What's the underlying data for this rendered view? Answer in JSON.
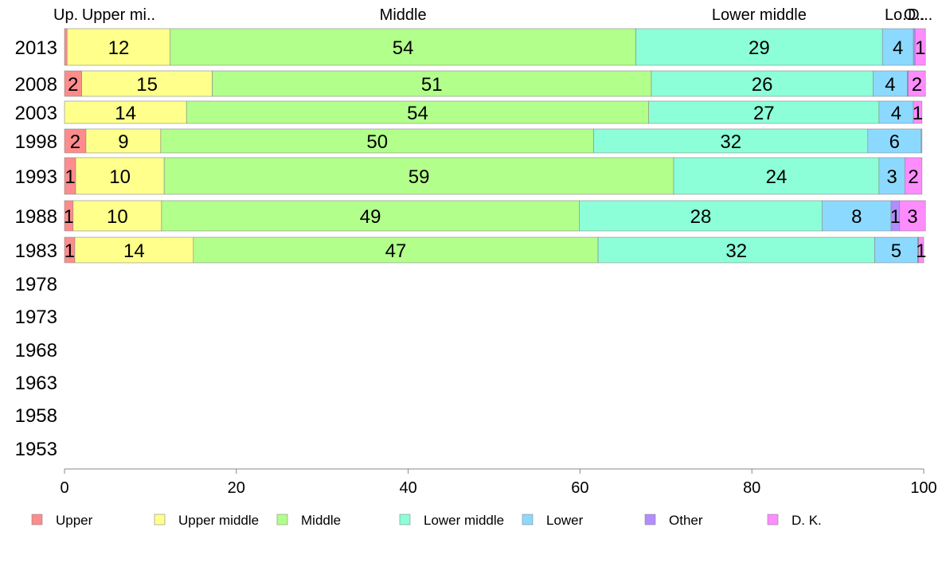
{
  "chart_data": {
    "type": "bar",
    "orientation": "horizontal",
    "stacked": true,
    "categories": [
      "2013",
      "2008",
      "2003",
      "1998",
      "1993",
      "1988",
      "1983",
      "1978",
      "1973",
      "1968",
      "1963",
      "1958",
      "1953"
    ],
    "xlim": [
      0,
      100
    ],
    "xticks": [
      0,
      20,
      40,
      60,
      80,
      100
    ],
    "top_labels": [
      "Up.",
      "Upper mi..",
      "Middle",
      "Lower middle",
      "Lo..",
      "O..",
      "D..."
    ],
    "legend_position": "bottom",
    "grid": false,
    "series": [
      {
        "name": "Upper",
        "color": "#ff8c8c",
        "values": [
          0.3,
          2,
          0,
          2.5,
          1.3,
          1,
          1.2,
          null,
          null,
          null,
          null,
          null,
          null
        ],
        "labels": [
          "",
          "2",
          "",
          "2",
          "1",
          "1",
          "1",
          "",
          "",
          "",
          "",
          "",
          ""
        ]
      },
      {
        "name": "Upper middle",
        "color": "#ffff8c",
        "values": [
          12,
          15.2,
          14.2,
          8.7,
          10.3,
          10.3,
          13.8,
          null,
          null,
          null,
          null,
          null,
          null
        ],
        "labels": [
          "12",
          "15",
          "14",
          "9",
          "10",
          "10",
          "14",
          "",
          "",
          "",
          "",
          "",
          ""
        ]
      },
      {
        "name": "Middle",
        "color": "#b3ff8c",
        "values": [
          54.2,
          51.1,
          53.8,
          50.4,
          59.3,
          48.6,
          47.1,
          null,
          null,
          null,
          null,
          null,
          null
        ],
        "labels": [
          "54",
          "51",
          "54",
          "50",
          "59",
          "49",
          "47",
          "",
          "",
          "",
          "",
          "",
          ""
        ]
      },
      {
        "name": "Lower middle",
        "color": "#8cffd9",
        "values": [
          28.7,
          25.8,
          26.8,
          31.9,
          23.9,
          28.3,
          32.2,
          null,
          null,
          null,
          null,
          null,
          null
        ],
        "labels": [
          "29",
          "26",
          "27",
          "32",
          "24",
          "28",
          "32",
          "",
          "",
          "",
          "",
          "",
          ""
        ]
      },
      {
        "name": "Lower",
        "color": "#8cd9ff",
        "values": [
          3.6,
          4,
          4,
          6.2,
          3,
          8,
          5,
          null,
          null,
          null,
          null,
          null,
          null
        ],
        "labels": [
          "4",
          "4",
          "4",
          "6",
          "3",
          "8",
          "5",
          "",
          "",
          "",
          "",
          "",
          ""
        ]
      },
      {
        "name": "Other",
        "color": "#b38cff",
        "values": [
          0.2,
          0.1,
          0,
          0,
          0,
          1,
          0.1,
          null,
          null,
          null,
          null,
          null,
          null
        ],
        "labels": [
          "",
          "",
          "",
          "",
          "",
          "1",
          "",
          "",
          "",
          "",
          "",
          "",
          ""
        ]
      },
      {
        "name": "D. K.",
        "color": "#ff8cff",
        "values": [
          1.2,
          2,
          1,
          0.1,
          2,
          3,
          0.6,
          null,
          null,
          null,
          null,
          null,
          null
        ],
        "labels": [
          "1",
          "2",
          "1",
          "",
          "2",
          "3",
          "1",
          "",
          "",
          "",
          "",
          "",
          ""
        ]
      }
    ]
  }
}
